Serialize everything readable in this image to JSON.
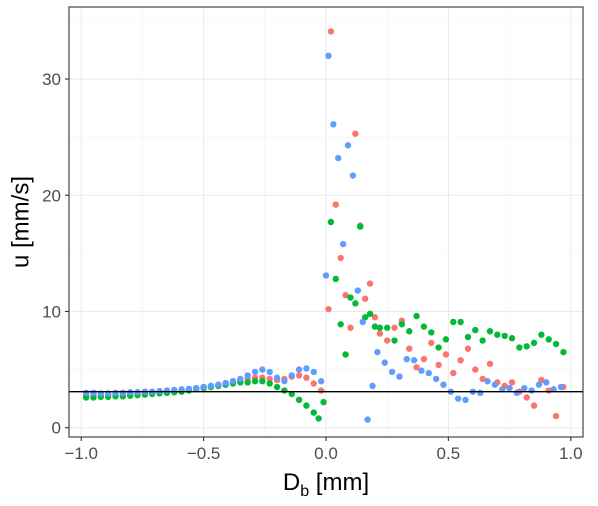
{
  "chart_data": {
    "type": "scatter",
    "xlabel": "D",
    "xlabel_subscript": "b",
    "xlabel_unit": " [mm]",
    "ylabel": "u [mm/s]",
    "xlim": [
      -1.05,
      1.05
    ],
    "ylim": [
      -0.8,
      36.2
    ],
    "x_ticks": [
      -1.0,
      -0.5,
      0.0,
      0.5,
      1.0
    ],
    "x_tick_labels": [
      "−1.0",
      "−0.5",
      "0.0",
      "0.5",
      "1.0"
    ],
    "y_ticks": [
      0,
      10,
      20,
      30
    ],
    "y_tick_labels": [
      "0",
      "10",
      "20",
      "30"
    ],
    "grid": true,
    "legend": "none",
    "reference_line": {
      "y": 3.1,
      "color": "#000000"
    },
    "series": [
      {
        "color": "#f8766d",
        "x": [
          -0.98,
          -0.95,
          -0.92,
          -0.89,
          -0.86,
          -0.83,
          -0.8,
          -0.77,
          -0.74,
          -0.71,
          -0.68,
          -0.65,
          -0.62,
          -0.59,
          -0.56,
          -0.53,
          -0.5,
          -0.47,
          -0.44,
          -0.41,
          -0.38,
          -0.35,
          -0.32,
          -0.29,
          -0.26,
          -0.23,
          -0.2,
          -0.17,
          -0.14,
          -0.11,
          -0.08,
          -0.05,
          -0.02,
          0.01,
          0.02,
          0.04,
          0.06,
          0.08,
          0.1,
          0.12,
          0.14,
          0.16,
          0.18,
          0.2,
          0.22,
          0.25,
          0.28,
          0.31,
          0.34,
          0.37,
          0.4,
          0.43,
          0.46,
          0.49,
          0.52,
          0.55,
          0.58,
          0.61,
          0.64,
          0.67,
          0.7,
          0.73,
          0.76,
          0.79,
          0.82,
          0.85,
          0.88,
          0.91,
          0.94,
          0.97
        ],
        "y": [
          2.8,
          2.8,
          2.8,
          2.85,
          2.85,
          2.9,
          2.9,
          2.95,
          3.0,
          3.0,
          3.05,
          3.1,
          3.15,
          3.2,
          3.3,
          3.4,
          3.5,
          3.6,
          3.7,
          3.8,
          4.0,
          4.1,
          4.2,
          4.3,
          4.3,
          4.2,
          4.1,
          4.2,
          4.4,
          4.5,
          4.3,
          3.8,
          3.2,
          10.2,
          34.1,
          19.2,
          14.6,
          11.4,
          8.6,
          25.3,
          17.4,
          11.1,
          12.4,
          9.5,
          8.1,
          7.5,
          8.6,
          9.2,
          6.8,
          5.2,
          5.9,
          7.3,
          5.4,
          6.3,
          4.7,
          5.8,
          6.8,
          5.0,
          4.2,
          5.5,
          3.9,
          3.6,
          3.9,
          3.1,
          2.6,
          1.9,
          4.1,
          3.2,
          1.0,
          3.5
        ]
      },
      {
        "color": "#00ba38",
        "x": [
          -0.98,
          -0.95,
          -0.92,
          -0.89,
          -0.86,
          -0.83,
          -0.8,
          -0.77,
          -0.74,
          -0.71,
          -0.68,
          -0.65,
          -0.62,
          -0.59,
          -0.56,
          -0.53,
          -0.5,
          -0.47,
          -0.44,
          -0.41,
          -0.38,
          -0.35,
          -0.32,
          -0.29,
          -0.26,
          -0.23,
          -0.2,
          -0.17,
          -0.14,
          -0.11,
          -0.08,
          -0.05,
          -0.03,
          -0.01,
          0.02,
          0.04,
          0.06,
          0.08,
          0.1,
          0.12,
          0.14,
          0.16,
          0.18,
          0.2,
          0.22,
          0.25,
          0.28,
          0.31,
          0.34,
          0.37,
          0.4,
          0.43,
          0.46,
          0.49,
          0.52,
          0.55,
          0.58,
          0.61,
          0.64,
          0.67,
          0.7,
          0.73,
          0.76,
          0.79,
          0.82,
          0.85,
          0.88,
          0.91,
          0.94,
          0.97
        ],
        "y": [
          2.6,
          2.6,
          2.65,
          2.65,
          2.7,
          2.7,
          2.75,
          2.8,
          2.85,
          2.9,
          2.95,
          3.0,
          3.05,
          3.1,
          3.2,
          3.3,
          3.4,
          3.5,
          3.6,
          3.7,
          3.8,
          3.9,
          3.9,
          4.0,
          4.0,
          3.8,
          3.5,
          3.2,
          2.9,
          2.4,
          1.9,
          1.3,
          0.8,
          2.2,
          17.7,
          12.8,
          8.9,
          6.3,
          11.2,
          10.7,
          17.3,
          9.5,
          9.8,
          8.7,
          8.6,
          8.6,
          7.5,
          8.9,
          8.3,
          9.6,
          8.7,
          8.2,
          6.9,
          7.6,
          9.1,
          9.1,
          7.8,
          8.4,
          7.5,
          8.3,
          8.0,
          7.9,
          7.7,
          6.9,
          7.0,
          7.3,
          8.0,
          7.6,
          7.2,
          6.5
        ]
      },
      {
        "color": "#619cff",
        "x": [
          -0.98,
          -0.95,
          -0.92,
          -0.89,
          -0.86,
          -0.83,
          -0.8,
          -0.77,
          -0.74,
          -0.71,
          -0.68,
          -0.65,
          -0.62,
          -0.59,
          -0.56,
          -0.53,
          -0.5,
          -0.47,
          -0.44,
          -0.41,
          -0.38,
          -0.35,
          -0.32,
          -0.29,
          -0.26,
          -0.23,
          -0.2,
          -0.17,
          -0.14,
          -0.11,
          -0.08,
          -0.05,
          -0.02,
          0.0,
          0.01,
          0.03,
          0.05,
          0.07,
          0.09,
          0.11,
          0.13,
          0.15,
          0.17,
          0.19,
          0.21,
          0.24,
          0.27,
          0.3,
          0.33,
          0.36,
          0.39,
          0.42,
          0.45,
          0.48,
          0.51,
          0.54,
          0.57,
          0.6,
          0.63,
          0.66,
          0.69,
          0.72,
          0.75,
          0.78,
          0.81,
          0.84,
          0.87,
          0.9,
          0.93,
          0.96
        ],
        "y": [
          3.0,
          3.0,
          2.95,
          2.95,
          3.0,
          3.0,
          3.05,
          3.05,
          3.1,
          3.1,
          3.15,
          3.2,
          3.25,
          3.3,
          3.35,
          3.4,
          3.5,
          3.6,
          3.7,
          3.85,
          4.0,
          4.2,
          4.5,
          4.8,
          5.0,
          4.8,
          4.3,
          4.0,
          4.5,
          5.0,
          5.1,
          4.8,
          4.0,
          13.1,
          32.0,
          26.1,
          23.2,
          15.8,
          24.3,
          21.7,
          11.8,
          9.1,
          0.7,
          3.6,
          6.5,
          5.6,
          4.8,
          4.4,
          5.9,
          5.8,
          4.9,
          4.7,
          4.2,
          3.7,
          3.1,
          2.5,
          2.4,
          3.1,
          3.0,
          4.0,
          3.7,
          3.3,
          3.4,
          3.0,
          3.4,
          3.2,
          3.7,
          3.9,
          3.3,
          3.5
        ]
      }
    ]
  }
}
